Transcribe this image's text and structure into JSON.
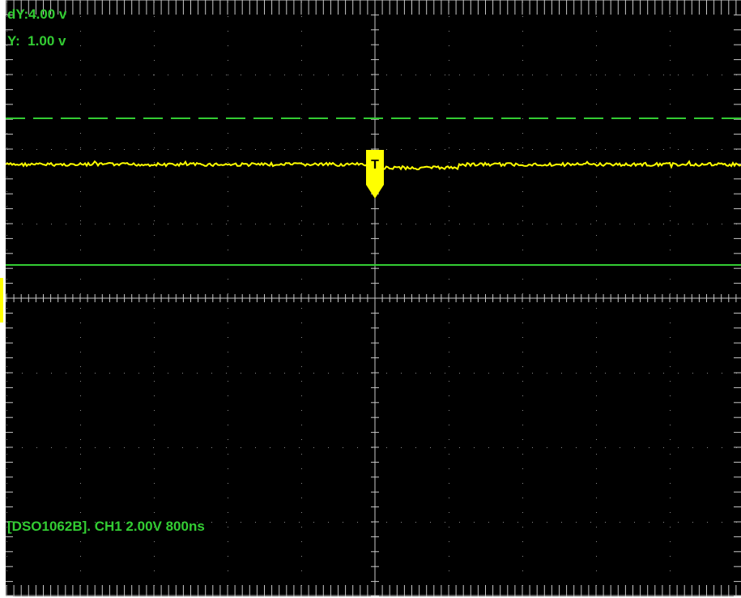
{
  "cursor_readout": {
    "dy": "dY:4.00 v",
    "y": "Y:  1.00 v"
  },
  "info_line": "[DSO1062B]. CH1 2.00V 800ns",
  "trigger_marker": {
    "label": "T"
  },
  "colors": {
    "background": "#000000",
    "grid": "#c8c8c8",
    "cursor": "#33cc33",
    "trace": "#ffff00",
    "text": "#33cc33"
  }
}
